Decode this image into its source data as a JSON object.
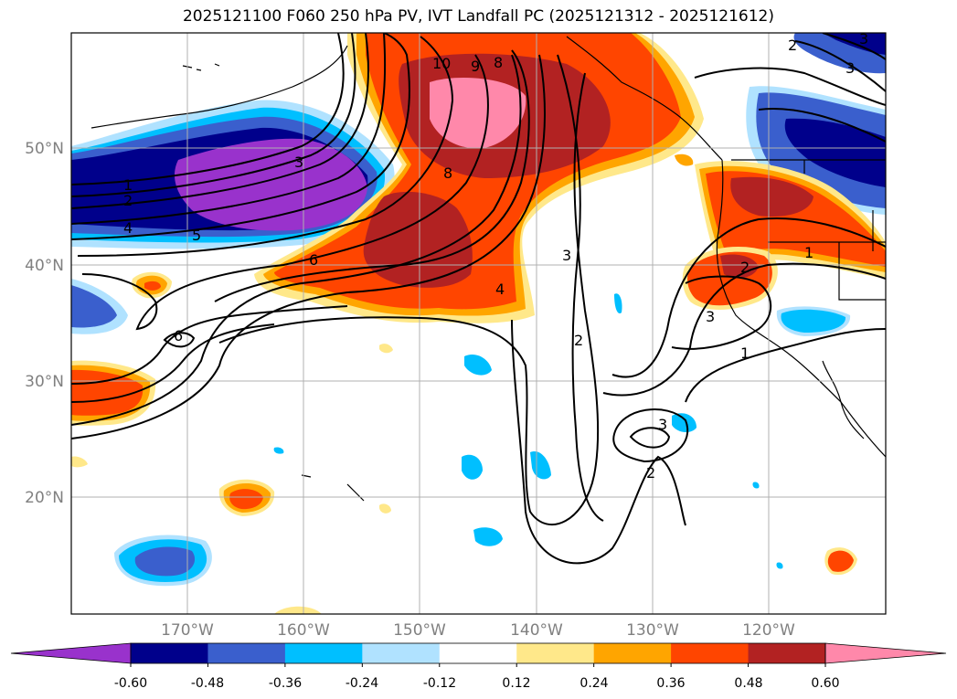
{
  "map": {
    "title": "2025121100 F060 250 hPa PV, IVT Landfall PC (2025121312 - 2025121612)",
    "lon_labels": [
      "170°W",
      "160°W",
      "150°W",
      "140°W",
      "130°W",
      "120°W"
    ],
    "lat_labels": [
      "50°N",
      "40°N",
      "30°N",
      "20°N"
    ],
    "colorbar": {
      "ticks": [
        "-0.60",
        "-0.48",
        "-0.36",
        "-0.24",
        "-0.12",
        "0.12",
        "0.24",
        "0.36",
        "0.48",
        "0.60"
      ],
      "colors": [
        "#9932cc",
        "#00008b",
        "#3a5fcd",
        "#00bfff",
        "#b0e2ff",
        "#ffffff",
        "#ffe88a",
        "#ffa500",
        "#ff4500",
        "#b22222",
        "#ff88aa"
      ]
    },
    "contour_labels": [
      "10",
      "9",
      "8",
      "8",
      "1",
      "2",
      "3",
      "4",
      "5",
      "6",
      "6",
      "4",
      "3",
      "2",
      "3",
      "2",
      "3",
      "1",
      "2",
      "3",
      "3",
      "2",
      "1"
    ]
  }
}
